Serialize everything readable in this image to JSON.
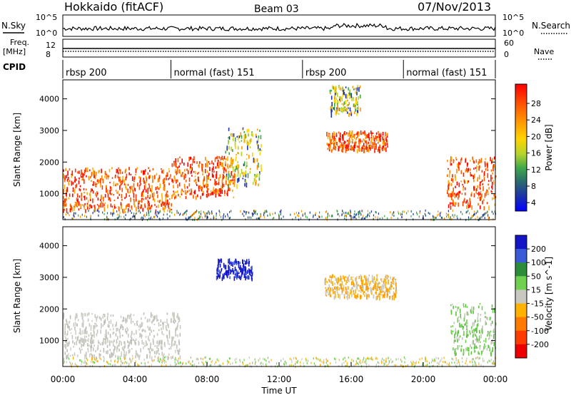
{
  "header": {
    "title": "Hokkaido (fitACF)",
    "beam": "Beam 03",
    "date": "07/Nov/2013"
  },
  "top_panels": {
    "nsky_label": "N.Sky",
    "nsearch_label": "N.Search",
    "nsky_ticks": [
      "10^5",
      "10^0"
    ],
    "nsky_ticks_right": [
      "10^5",
      "10^0"
    ],
    "freq_label_1": "Freq.",
    "freq_label_2": "[MHz]",
    "freq_ticks": [
      "12",
      "8"
    ],
    "nave_label": "Nave",
    "nave_ticks": [
      "60",
      "0"
    ]
  },
  "cpid": {
    "label": "CPID",
    "segments": [
      {
        "label": "rbsp 200",
        "start_hour": 0
      },
      {
        "label": "normal (fast) 151",
        "start_hour": 6
      },
      {
        "label": "rbsp 200",
        "start_hour": 13.3
      },
      {
        "label": "normal (fast) 151",
        "start_hour": 18.9
      }
    ]
  },
  "chart_data": [
    {
      "type": "heatmap",
      "panel": "power",
      "ylabel": "Slant Range [km]",
      "ylim": [
        180,
        4600
      ],
      "yticks": [
        "1000",
        "2000",
        "3000",
        "4000"
      ],
      "colorbar_label": "Power [dB]",
      "colorbar_ticks": [
        "28",
        "24",
        "20",
        "16",
        "12",
        "8",
        "4"
      ],
      "colorbar_colors": [
        "#ff0000",
        "#ff5a00",
        "#ff9600",
        "#ffd000",
        "#b8d830",
        "#4fb04f",
        "#2a7a5a",
        "#1f3fa0",
        "#0000ff"
      ],
      "regions": [
        {
          "t": [
            0,
            6
          ],
          "r": [
            500,
            1850
          ],
          "level": "high"
        },
        {
          "t": [
            6,
            9.5
          ],
          "r": [
            900,
            2200
          ],
          "level": "high"
        },
        {
          "t": [
            9,
            11
          ],
          "r": [
            1300,
            3100
          ],
          "level": "mid"
        },
        {
          "t": [
            14.6,
            18.0
          ],
          "r": [
            2400,
            3000
          ],
          "level": "high"
        },
        {
          "t": [
            14.8,
            16.5
          ],
          "r": [
            3500,
            4450
          ],
          "level": "mid"
        },
        {
          "t": [
            21.3,
            24
          ],
          "r": [
            600,
            2200
          ],
          "level": "high"
        }
      ]
    },
    {
      "type": "heatmap",
      "panel": "velocity",
      "ylabel": "Slant Range [km]",
      "xlabel": "Time UT",
      "ylim": [
        180,
        4600
      ],
      "yticks": [
        "1000",
        "2000",
        "3000",
        "4000"
      ],
      "colorbar_label": "Velocity [m s^-1]",
      "colorbar_ticks": [
        "200",
        "100",
        "50",
        "15",
        "-15",
        "-50",
        "-100",
        "-200"
      ],
      "colorbar_colors": [
        "#1515c8",
        "#3a5ad8",
        "#2b8c3a",
        "#70d050",
        "#c8c8c0",
        "#ffb300",
        "#ff7a00",
        "#ff3c00",
        "#ee0000"
      ],
      "regions": [
        {
          "t": [
            0,
            6.5
          ],
          "r": [
            500,
            1900
          ],
          "value_class": "low"
        },
        {
          "t": [
            8.5,
            10.5
          ],
          "r": [
            3000,
            3600
          ],
          "value_class": "toward_high"
        },
        {
          "t": [
            14.5,
            18.5
          ],
          "r": [
            2400,
            3100
          ],
          "value_class": "away_mid"
        },
        {
          "t": [
            21.5,
            24
          ],
          "r": [
            600,
            2200
          ],
          "value_class": "toward_low"
        }
      ]
    }
  ],
  "time_axis": {
    "xlabel": "Time UT",
    "ticks": [
      "00:00",
      "04:00",
      "08:00",
      "12:00",
      "16:00",
      "20:00",
      "00:00"
    ]
  }
}
